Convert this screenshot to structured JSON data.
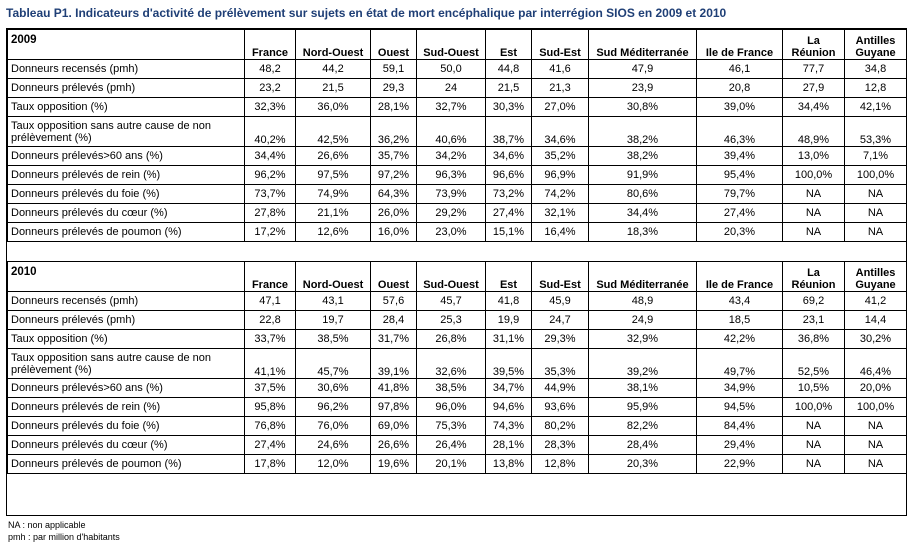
{
  "title": "Tableau P1. Indicateurs d'activité de prélèvement sur sujets en état de mort encéphalique par interrégion SIOS en 2009 et 2010",
  "columns": [
    "France",
    "Nord-Ouest",
    "Ouest",
    "Sud-Ouest",
    "Est",
    "Sud-Est",
    "Sud Méditerranée",
    "Ile de France",
    "La Réunion",
    "Antilles Guyane"
  ],
  "sections": [
    {
      "year": "2009",
      "rows": [
        {
          "label": "Donneurs recensés (pmh)",
          "values": [
            "48,2",
            "44,2",
            "59,1",
            "50,0",
            "44,8",
            "41,6",
            "47,9",
            "46,1",
            "77,7",
            "34,8"
          ]
        },
        {
          "label": "Donneurs prélevés (pmh)",
          "values": [
            "23,2",
            "21,5",
            "29,3",
            "24",
            "21,5",
            "21,3",
            "23,9",
            "20,8",
            "27,9",
            "12,8"
          ]
        },
        {
          "label": "Taux opposition (%)",
          "values": [
            "32,3%",
            "36,0%",
            "28,1%",
            "32,7%",
            "30,3%",
            "27,0%",
            "30,8%",
            "39,0%",
            "34,4%",
            "42,1%"
          ]
        },
        {
          "label": "Taux opposition sans autre cause de non prélèvement (%)",
          "values": [
            "40,2%",
            "42,5%",
            "36,2%",
            "40,6%",
            "38,7%",
            "34,6%",
            "38,2%",
            "46,3%",
            "48,9%",
            "53,3%"
          ]
        },
        {
          "label": "Donneurs prélevés>60 ans (%)",
          "values": [
            "34,4%",
            "26,6%",
            "35,7%",
            "34,2%",
            "34,6%",
            "35,2%",
            "38,2%",
            "39,4%",
            "13,0%",
            "7,1%"
          ]
        },
        {
          "label": "Donneurs prélevés de rein (%)",
          "values": [
            "96,2%",
            "97,5%",
            "97,2%",
            "96,3%",
            "96,6%",
            "96,9%",
            "91,9%",
            "95,4%",
            "100,0%",
            "100,0%"
          ]
        },
        {
          "label": "Donneurs prélevés du foie (%)",
          "values": [
            "73,7%",
            "74,9%",
            "64,3%",
            "73,9%",
            "73,2%",
            "74,2%",
            "80,6%",
            "79,7%",
            "NA",
            "NA"
          ]
        },
        {
          "label": "Donneurs prélevés du cœur (%)",
          "values": [
            "27,8%",
            "21,1%",
            "26,0%",
            "29,2%",
            "27,4%",
            "32,1%",
            "34,4%",
            "27,4%",
            "NA",
            "NA"
          ]
        },
        {
          "label": "Donneurs prélevés de poumon (%)",
          "values": [
            "17,2%",
            "12,6%",
            "16,0%",
            "23,0%",
            "15,1%",
            "16,4%",
            "18,3%",
            "20,3%",
            "NA",
            "NA"
          ]
        }
      ]
    },
    {
      "year": "2010",
      "rows": [
        {
          "label": "Donneurs recensés (pmh)",
          "values": [
            "47,1",
            "43,1",
            "57,6",
            "45,7",
            "41,8",
            "45,9",
            "48,9",
            "43,4",
            "69,2",
            "41,2"
          ]
        },
        {
          "label": "Donneurs prélevés (pmh)",
          "values": [
            "22,8",
            "19,7",
            "28,4",
            "25,3",
            "19,9",
            "24,7",
            "24,9",
            "18,5",
            "23,1",
            "14,4"
          ]
        },
        {
          "label": "Taux opposition (%)",
          "values": [
            "33,7%",
            "38,5%",
            "31,7%",
            "26,8%",
            "31,1%",
            "29,3%",
            "32,9%",
            "42,2%",
            "36,8%",
            "30,2%"
          ]
        },
        {
          "label": "Taux opposition sans autre cause de non prélèvement (%)",
          "values": [
            "41,1%",
            "45,7%",
            "39,1%",
            "32,6%",
            "39,5%",
            "35,3%",
            "39,2%",
            "49,7%",
            "52,5%",
            "46,4%"
          ]
        },
        {
          "label": "Donneurs prélevés>60 ans (%)",
          "values": [
            "37,5%",
            "30,6%",
            "41,8%",
            "38,5%",
            "34,7%",
            "44,9%",
            "38,1%",
            "34,9%",
            "10,5%",
            "20,0%"
          ]
        },
        {
          "label": "Donneurs prélevés de rein (%)",
          "values": [
            "95,8%",
            "96,2%",
            "97,8%",
            "96,0%",
            "94,6%",
            "93,6%",
            "95,9%",
            "94,5%",
            "100,0%",
            "100,0%"
          ]
        },
        {
          "label": "Donneurs prélevés du foie (%)",
          "values": [
            "76,8%",
            "76,0%",
            "69,0%",
            "75,3%",
            "74,3%",
            "80,2%",
            "82,2%",
            "84,4%",
            "NA",
            "NA"
          ]
        },
        {
          "label": "Donneurs prélevés du cœur (%)",
          "values": [
            "27,4%",
            "24,6%",
            "26,6%",
            "26,4%",
            "28,1%",
            "28,3%",
            "28,4%",
            "29,4%",
            "NA",
            "NA"
          ]
        },
        {
          "label": "Donneurs prélevés de poumon (%)",
          "values": [
            "17,8%",
            "12,0%",
            "19,6%",
            "20,1%",
            "13,8%",
            "12,8%",
            "20,3%",
            "22,9%",
            "NA",
            "NA"
          ]
        }
      ]
    }
  ],
  "notes": [
    "NA : non applicable",
    "pmh : par million d'habitants"
  ]
}
